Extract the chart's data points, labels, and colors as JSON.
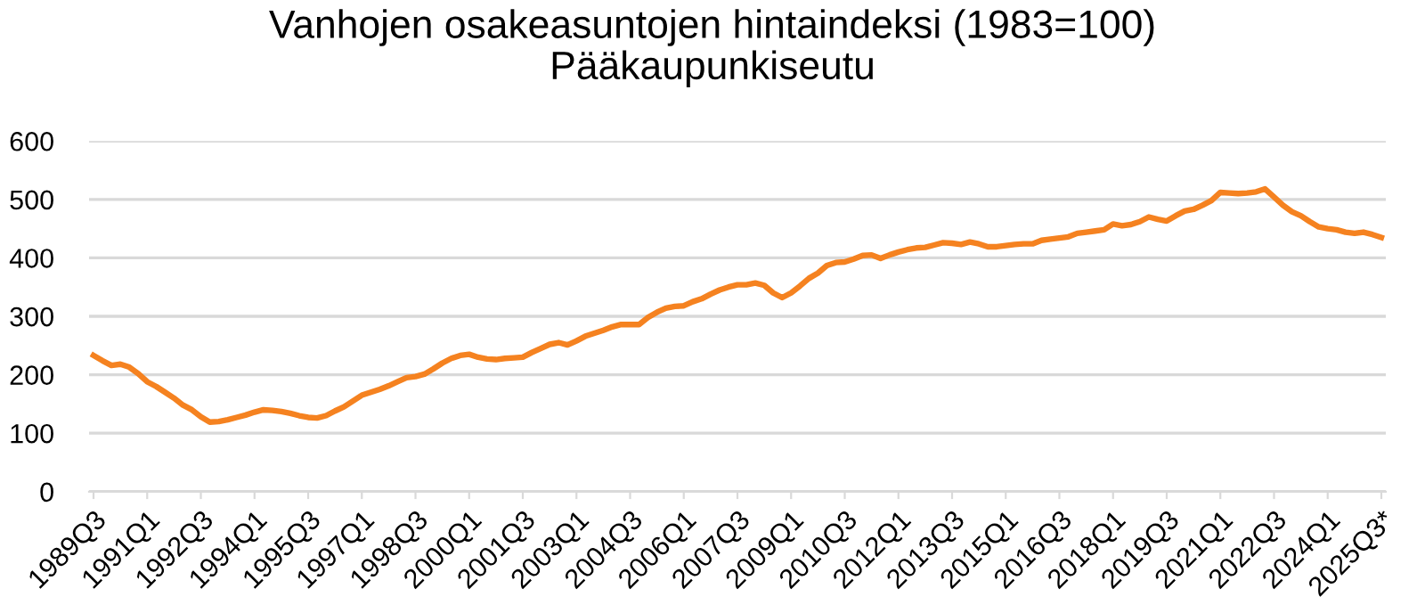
{
  "chart_data": {
    "type": "line",
    "title": "Vanhojen osakeasuntojen hintaindeksi (1983=100)\nPääkaupunkiseutu",
    "categories": [
      "1989Q3",
      null,
      null,
      null,
      null,
      null,
      "1991Q1",
      null,
      null,
      null,
      null,
      null,
      "1992Q3",
      null,
      null,
      null,
      null,
      null,
      "1994Q1",
      null,
      null,
      null,
      null,
      null,
      "1995Q3",
      null,
      null,
      null,
      null,
      null,
      "1997Q1",
      null,
      null,
      null,
      null,
      null,
      "1998Q3",
      null,
      null,
      null,
      null,
      null,
      "2000Q1",
      null,
      null,
      null,
      null,
      null,
      "2001Q3",
      null,
      null,
      null,
      null,
      null,
      "2003Q1",
      null,
      null,
      null,
      null,
      null,
      "2004Q3",
      null,
      null,
      null,
      null,
      null,
      "2006Q1",
      null,
      null,
      null,
      null,
      null,
      "2007Q3",
      null,
      null,
      null,
      null,
      null,
      "2009Q1",
      null,
      null,
      null,
      null,
      null,
      "2010Q3",
      null,
      null,
      null,
      null,
      null,
      "2012Q1",
      null,
      null,
      null,
      null,
      null,
      "2013Q3",
      null,
      null,
      null,
      null,
      null,
      "2015Q1",
      null,
      null,
      null,
      null,
      null,
      "2016Q3",
      null,
      null,
      null,
      null,
      null,
      "2018Q1",
      null,
      null,
      null,
      null,
      null,
      "2019Q3",
      null,
      null,
      null,
      null,
      null,
      "2021Q1",
      null,
      null,
      null,
      null,
      null,
      "2022Q3",
      null,
      null,
      null,
      null,
      null,
      "2024Q1",
      null,
      null,
      null,
      null,
      null,
      "2025Q3*"
    ],
    "series": [
      {
        "color": "#f58220",
        "values": [
          233,
          224,
          216,
          218,
          213,
          202,
          188,
          180,
          170,
          160,
          148,
          140,
          128,
          119,
          120,
          123,
          127,
          131,
          136,
          140,
          139,
          137,
          134,
          130,
          127,
          126,
          130,
          138,
          145,
          155,
          165,
          170,
          175,
          181,
          188,
          195,
          197,
          201,
          210,
          220,
          228,
          233,
          235,
          230,
          227,
          226,
          228,
          229,
          230,
          238,
          245,
          252,
          255,
          251,
          258,
          266,
          271,
          276,
          282,
          286,
          286,
          286,
          298,
          307,
          314,
          317,
          318,
          325,
          330,
          338,
          345,
          350,
          354,
          354,
          357,
          353,
          340,
          332,
          340,
          352,
          365,
          374,
          387,
          392,
          393,
          398,
          404,
          405,
          399,
          405,
          410,
          414,
          417,
          418,
          422,
          426,
          425,
          423,
          427,
          424,
          419,
          419,
          421,
          423,
          424,
          424,
          430,
          432,
          434,
          436,
          442,
          444,
          446,
          448,
          458,
          455,
          457,
          462,
          470,
          466,
          463,
          472,
          480,
          483,
          490,
          498,
          512,
          511,
          510,
          511,
          513,
          518,
          504,
          490,
          479,
          472,
          462,
          453,
          450,
          448,
          444,
          442,
          444,
          440,
          435
        ]
      }
    ],
    "ylim": [
      0,
      600
    ],
    "yticks": [
      0,
      100,
      200,
      300,
      400,
      500,
      600
    ],
    "grid": "y",
    "legend": false,
    "marker": "none",
    "line_style": "solid"
  }
}
